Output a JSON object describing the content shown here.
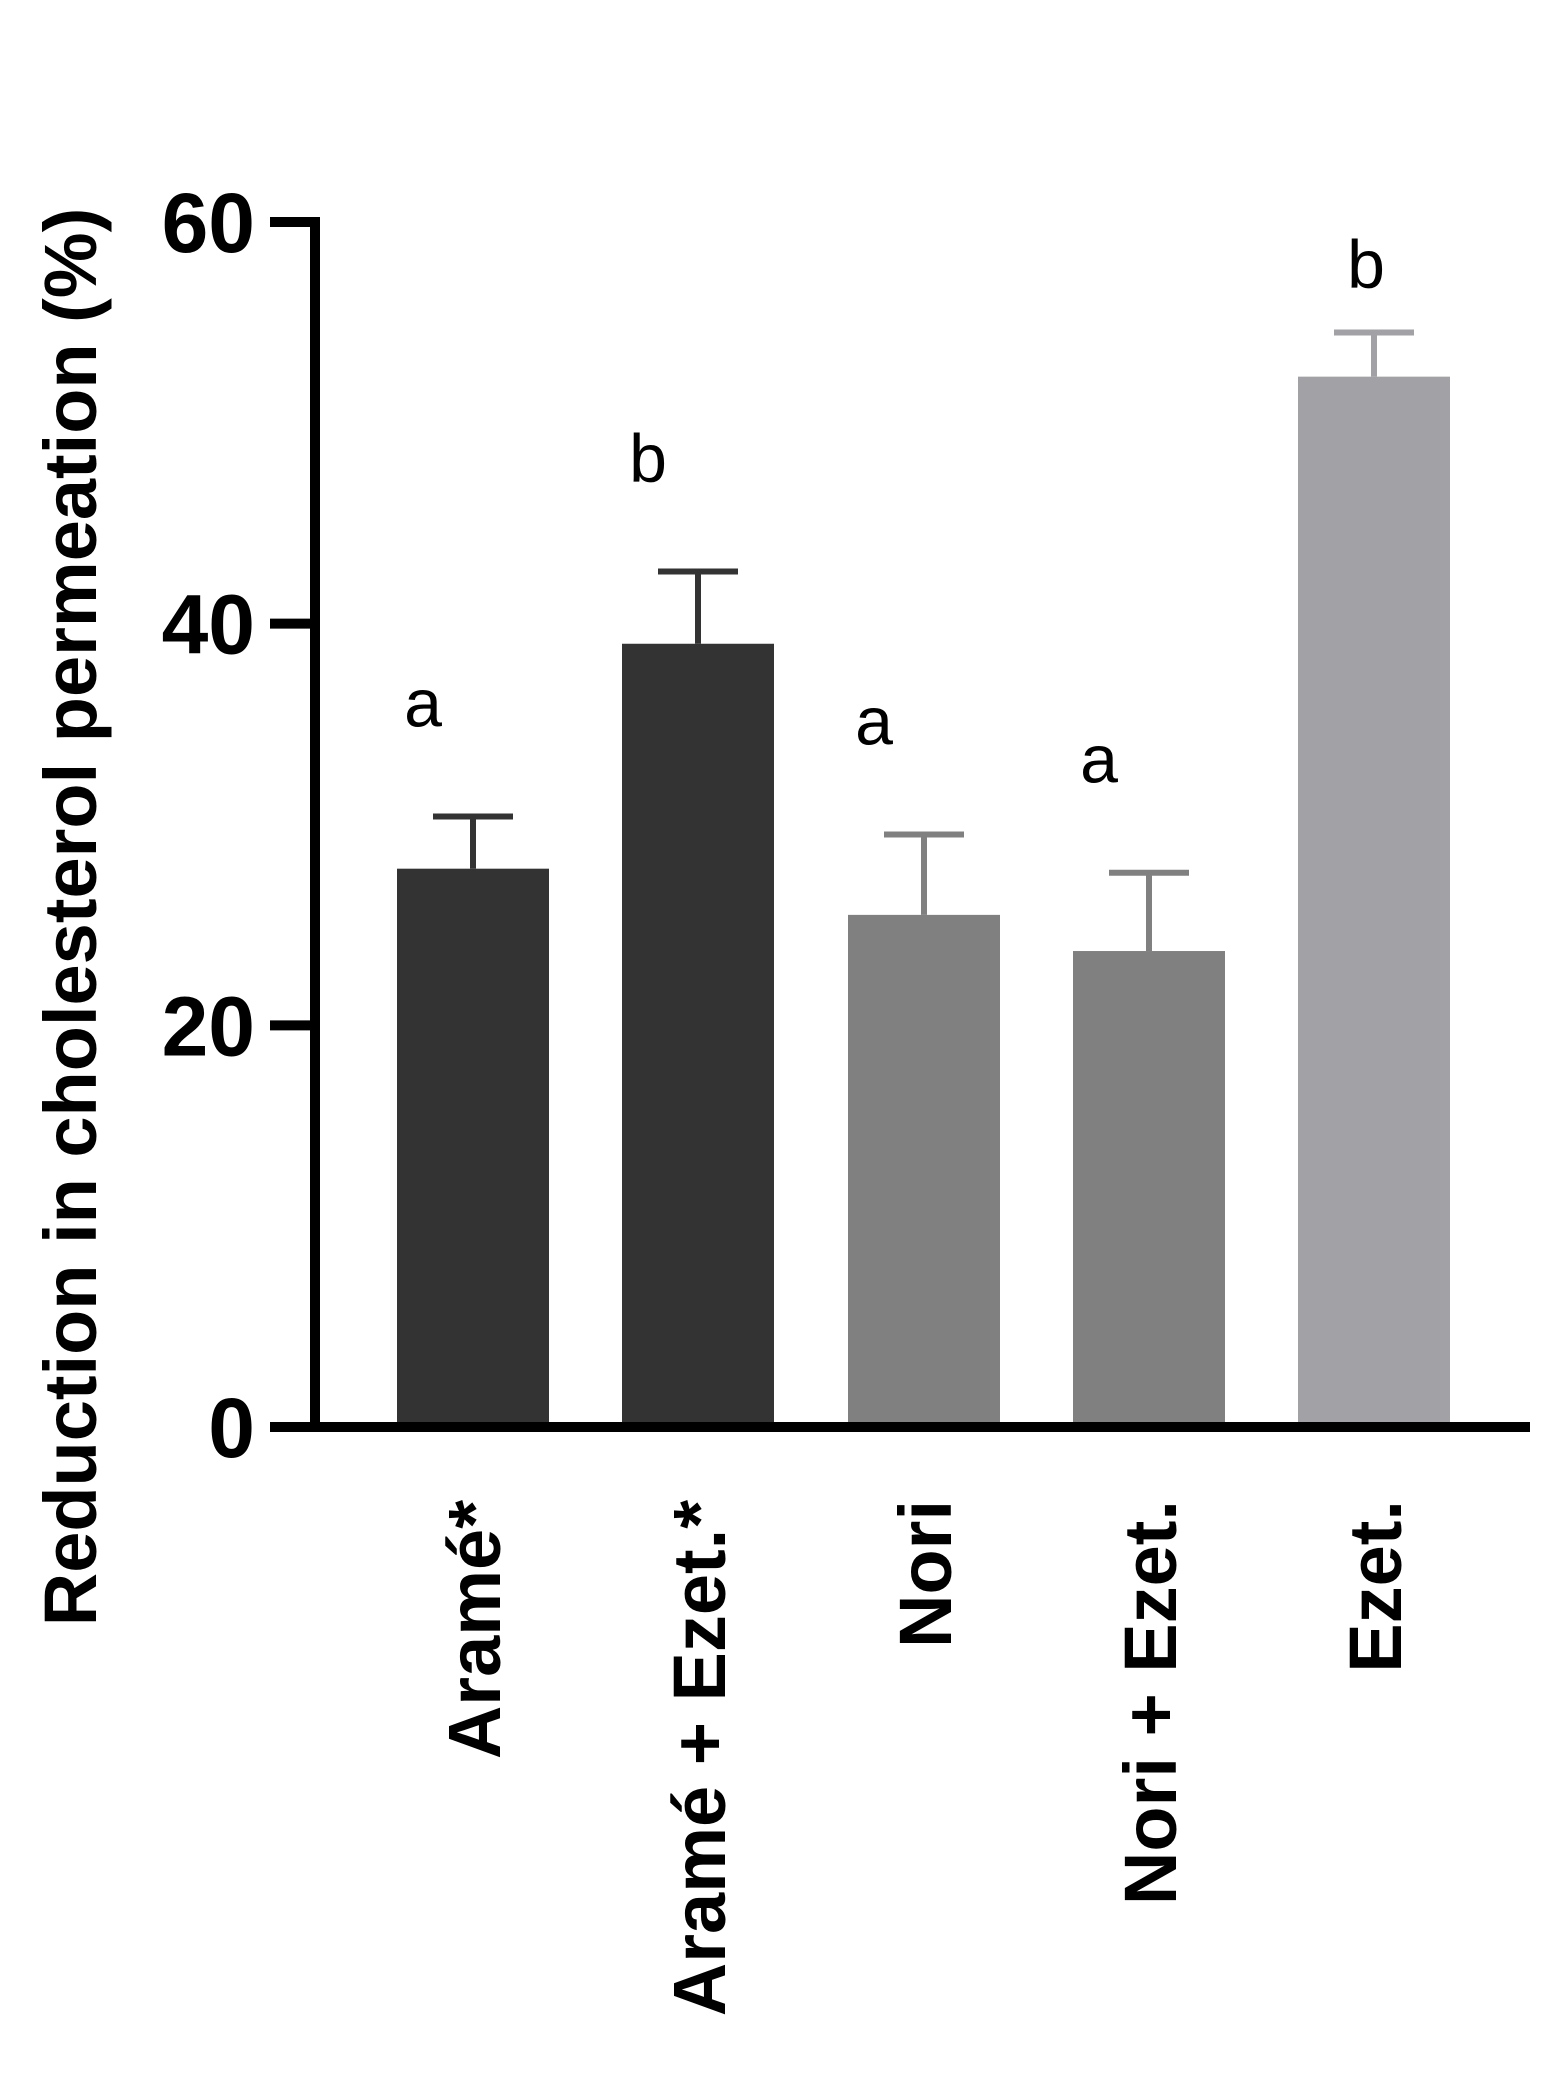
{
  "chart_data": {
    "type": "bar",
    "ylabel": "Reduction in cholesterol permeation (%)",
    "xlabel": "",
    "ylim": [
      0,
      60
    ],
    "yticks": [
      "0",
      "20",
      "40",
      "60"
    ],
    "grid": false,
    "categories": [
      "Aramé*",
      "Aramé + Ezet.*",
      "Nori",
      "Nori + Ezet.",
      "Ezet."
    ],
    "values": [
      27.8,
      39.0,
      25.5,
      23.7,
      52.3
    ],
    "errors": [
      2.6,
      3.6,
      4.0,
      3.9,
      2.2
    ],
    "significance": [
      "a",
      "b",
      "a",
      "a",
      "b"
    ],
    "colors": [
      "#333333",
      "#333333",
      "#808080",
      "#808080",
      "#a2a2a6"
    ]
  }
}
